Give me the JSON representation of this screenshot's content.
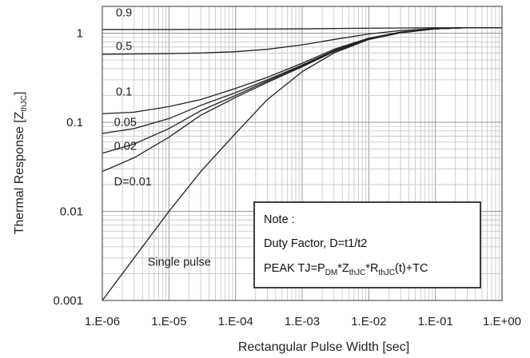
{
  "chart_data": {
    "type": "line",
    "title": "",
    "xlabel": "Rectangular Pulse Width [sec]",
    "ylabel": {
      "main": "Thermal Response [Z",
      "sub": "thJC",
      "close": "]"
    },
    "x_scale": "log",
    "y_scale": "log",
    "xlim": [
      1e-06,
      1
    ],
    "ylim": [
      0.001,
      2
    ],
    "grid": true,
    "x_ticks": [
      {
        "value": 1e-06,
        "label": "1.E-06"
      },
      {
        "value": 1e-05,
        "label": "1.E-05"
      },
      {
        "value": 0.0001,
        "label": "1.E-04"
      },
      {
        "value": 0.001,
        "label": "1.E-03"
      },
      {
        "value": 0.01,
        "label": "1.E-02"
      },
      {
        "value": 0.1,
        "label": "1.E-01"
      },
      {
        "value": 1,
        "label": "1.E+00"
      }
    ],
    "y_ticks": [
      {
        "value": 0.001,
        "label": "0.001"
      },
      {
        "value": 0.01,
        "label": "0.01"
      },
      {
        "value": 0.1,
        "label": "0.1"
      },
      {
        "value": 1,
        "label": "1"
      }
    ],
    "series": [
      {
        "name": "0.9",
        "points": [
          [
            1e-06,
            1.1
          ],
          [
            1e-05,
            1.1
          ],
          [
            0.0001,
            1.11
          ],
          [
            0.001,
            1.12
          ],
          [
            0.01,
            1.14
          ],
          [
            0.1,
            1.15
          ],
          [
            1,
            1.15
          ]
        ]
      },
      {
        "name": "0.5",
        "points": [
          [
            1e-06,
            0.58
          ],
          [
            1e-05,
            0.59
          ],
          [
            3e-05,
            0.6
          ],
          [
            0.0001,
            0.62
          ],
          [
            0.0003,
            0.66
          ],
          [
            0.001,
            0.74
          ],
          [
            0.003,
            0.85
          ],
          [
            0.01,
            0.98
          ],
          [
            0.03,
            1.07
          ],
          [
            0.1,
            1.13
          ],
          [
            0.3,
            1.15
          ],
          [
            1,
            1.15
          ]
        ]
      },
      {
        "name": "0.1",
        "points": [
          [
            1e-06,
            0.125
          ],
          [
            3e-06,
            0.13
          ],
          [
            1e-05,
            0.15
          ],
          [
            3e-05,
            0.18
          ],
          [
            0.0001,
            0.24
          ],
          [
            0.0003,
            0.32
          ],
          [
            0.001,
            0.46
          ],
          [
            0.003,
            0.66
          ],
          [
            0.01,
            0.88
          ],
          [
            0.03,
            1.03
          ],
          [
            0.1,
            1.12
          ],
          [
            0.25,
            1.15
          ]
        ]
      },
      {
        "name": "0.05",
        "points": [
          [
            1e-06,
            0.075
          ],
          [
            3e-06,
            0.085
          ],
          [
            1e-05,
            0.11
          ],
          [
            3e-05,
            0.155
          ],
          [
            0.0001,
            0.215
          ],
          [
            0.0003,
            0.3
          ],
          [
            0.001,
            0.44
          ],
          [
            0.003,
            0.64
          ],
          [
            0.01,
            0.87
          ],
          [
            0.03,
            1.02
          ],
          [
            0.1,
            1.12
          ],
          [
            0.25,
            1.15
          ]
        ]
      },
      {
        "name": "0.02",
        "points": [
          [
            1e-06,
            0.045
          ],
          [
            3e-06,
            0.057
          ],
          [
            1e-05,
            0.085
          ],
          [
            3e-05,
            0.135
          ],
          [
            0.0001,
            0.2
          ],
          [
            0.0003,
            0.29
          ],
          [
            0.001,
            0.43
          ],
          [
            0.003,
            0.63
          ],
          [
            0.01,
            0.86
          ],
          [
            0.03,
            1.02
          ],
          [
            0.1,
            1.12
          ],
          [
            0.25,
            1.15
          ]
        ]
      },
      {
        "name": "0.01",
        "label": "D=0.01",
        "points": [
          [
            1e-06,
            0.028
          ],
          [
            3e-06,
            0.04
          ],
          [
            1e-05,
            0.068
          ],
          [
            3e-05,
            0.12
          ],
          [
            0.0001,
            0.19
          ],
          [
            0.0003,
            0.28
          ],
          [
            0.001,
            0.42
          ],
          [
            0.003,
            0.62
          ],
          [
            0.01,
            0.86
          ],
          [
            0.03,
            1.02
          ],
          [
            0.1,
            1.12
          ],
          [
            0.25,
            1.15
          ]
        ]
      },
      {
        "name": "Single pulse",
        "points": [
          [
            1e-06,
            0.001
          ],
          [
            3e-06,
            0.003
          ],
          [
            1e-05,
            0.01
          ],
          [
            3e-05,
            0.028
          ],
          [
            0.0001,
            0.075
          ],
          [
            0.0003,
            0.18
          ],
          [
            0.001,
            0.37
          ],
          [
            0.003,
            0.6
          ],
          [
            0.01,
            0.85
          ],
          [
            0.03,
            1.01
          ],
          [
            0.1,
            1.12
          ],
          [
            0.25,
            1.15
          ]
        ]
      }
    ],
    "curve_labels": [
      {
        "text": "0.9",
        "x": 1.6e-06,
        "y": 1.55
      },
      {
        "text": "0.5",
        "x": 1.6e-06,
        "y": 0.65
      },
      {
        "text": "0.1",
        "x": 1.6e-06,
        "y": 0.2
      },
      {
        "text": "0.05",
        "x": 1.5e-06,
        "y": 0.091
      },
      {
        "text": "0.02",
        "x": 1.5e-06,
        "y": 0.049
      },
      {
        "text": "D=0.01",
        "x": 1.5e-06,
        "y": 0.0195
      },
      {
        "text": "Single pulse",
        "x": 4.8e-06,
        "y": 0.00245
      }
    ],
    "annotation": {
      "title": "Note :",
      "line1": "Duty Factor, D=t1/t2",
      "line2": {
        "p1": "PEAK TJ=P",
        "s1": "DM",
        "p2": "*Z",
        "s2": "thJC",
        "p3": "*R",
        "s3": "thJC",
        "p4": "(t)+TC"
      }
    }
  }
}
